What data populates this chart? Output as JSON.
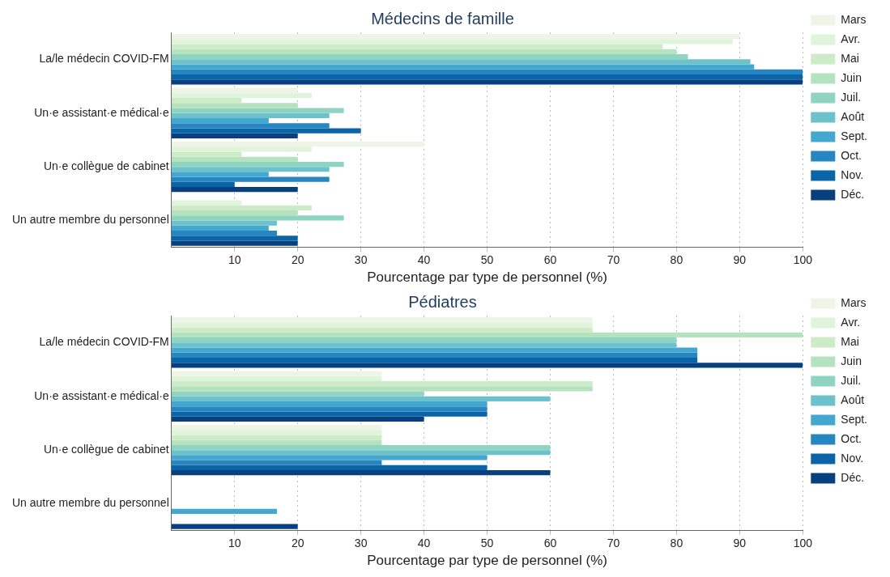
{
  "chart_data": [
    {
      "type": "bar",
      "orientation": "horizontal",
      "title": "Médecins de famille",
      "xlabel": "Pourcentage par type de personnel (%)",
      "categories": [
        "La/le médecin COVID-FM",
        "Un·e assistant·e médical·e",
        "Un·e collègue de cabinet",
        "Un autre membre du personnel"
      ],
      "xlim": [
        0,
        100
      ],
      "xticks": [
        10,
        20,
        30,
        40,
        50,
        60,
        70,
        80,
        90,
        100
      ],
      "grid": "x",
      "legend": "right",
      "series": [
        {
          "name": "Mars",
          "color": "#eef5e6",
          "values": [
            90,
            20,
            40,
            null
          ]
        },
        {
          "name": "Avr.",
          "color": "#e0f3db",
          "values": [
            88.9,
            22.2,
            22.2,
            11.1
          ]
        },
        {
          "name": "Mai",
          "color": "#cdebc6",
          "values": [
            77.8,
            11.1,
            11.1,
            22.2
          ]
        },
        {
          "name": "Juin",
          "color": "#b5e2bf",
          "values": [
            80,
            20,
            20,
            20
          ]
        },
        {
          "name": "Juil.",
          "color": "#8fd3c1",
          "values": [
            81.8,
            27.3,
            27.3,
            27.3
          ]
        },
        {
          "name": "Août",
          "color": "#6cc1cb",
          "values": [
            91.7,
            25,
            25,
            16.7
          ]
        },
        {
          "name": "Sept.",
          "color": "#44a7d0",
          "values": [
            92.3,
            15.4,
            15.4,
            15.4
          ]
        },
        {
          "name": "Oct.",
          "color": "#2785c0",
          "values": [
            100,
            25,
            25,
            16.7
          ]
        },
        {
          "name": "Nov.",
          "color": "#0a64a8",
          "values": [
            100,
            30,
            10,
            20
          ]
        },
        {
          "name": "Déc.",
          "color": "#08407f",
          "values": [
            100,
            20,
            20,
            20
          ]
        }
      ]
    },
    {
      "type": "bar",
      "orientation": "horizontal",
      "title": "Pédiatres",
      "xlabel": "Pourcentage par type de personnel (%)",
      "categories": [
        "La/le médecin COVID-FM",
        "Un·e assistant·e médical·e",
        "Un·e collègue de cabinet",
        "Un autre membre du personnel"
      ],
      "xlim": [
        0,
        100
      ],
      "xticks": [
        10,
        20,
        30,
        40,
        50,
        60,
        70,
        80,
        90,
        100
      ],
      "grid": "x",
      "legend": "right",
      "series": [
        {
          "name": "Mars",
          "color": "#eef5e6",
          "values": [
            66.7,
            33.3,
            33.3,
            null
          ]
        },
        {
          "name": "Avr.",
          "color": "#e0f3db",
          "values": [
            66.7,
            33.3,
            33.3,
            null
          ]
        },
        {
          "name": "Mai",
          "color": "#cdebc6",
          "values": [
            66.7,
            66.7,
            33.3,
            null
          ]
        },
        {
          "name": "Juin",
          "color": "#b5e2bf",
          "values": [
            100,
            66.7,
            33.3,
            null
          ]
        },
        {
          "name": "Juil.",
          "color": "#8fd3c1",
          "values": [
            80,
            40,
            60,
            null
          ]
        },
        {
          "name": "Août",
          "color": "#6cc1cb",
          "values": [
            80,
            60,
            60,
            null
          ]
        },
        {
          "name": "Sept.",
          "color": "#44a7d0",
          "values": [
            83.3,
            50,
            50,
            16.7
          ]
        },
        {
          "name": "Oct.",
          "color": "#2785c0",
          "values": [
            83.3,
            50,
            33.3,
            null
          ]
        },
        {
          "name": "Nov.",
          "color": "#0a64a8",
          "values": [
            83.3,
            50,
            50,
            null
          ]
        },
        {
          "name": "Déc.",
          "color": "#08407f",
          "values": [
            100,
            40,
            60,
            20
          ]
        }
      ]
    }
  ]
}
